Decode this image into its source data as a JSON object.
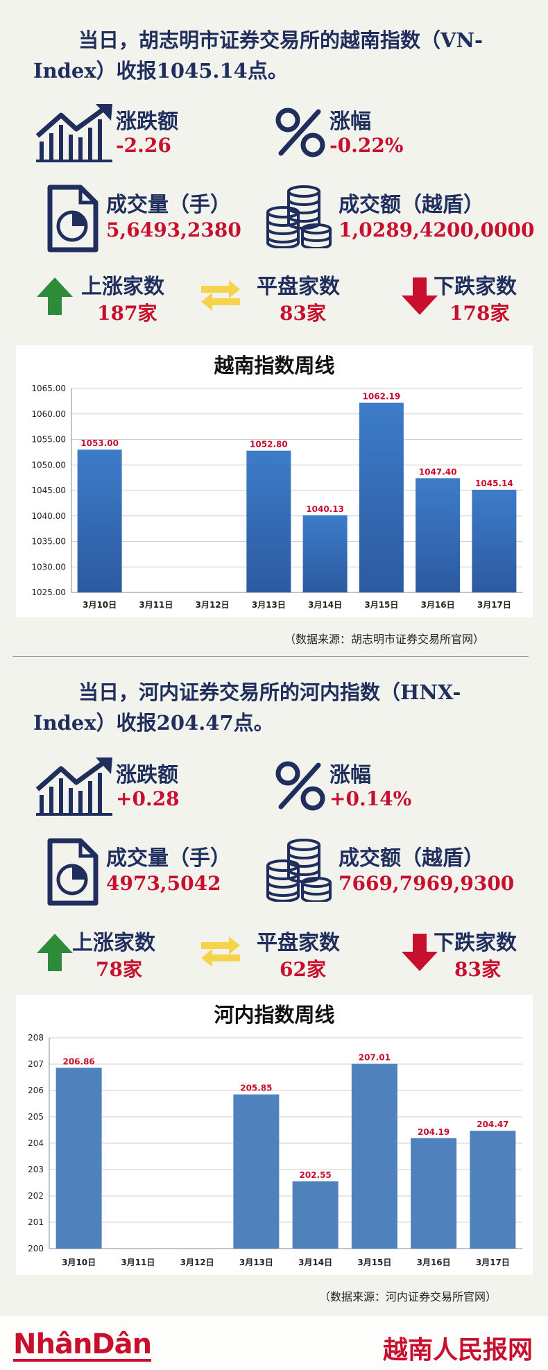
{
  "section1": {
    "headline": "当日，胡志明市证券交易所的越南指数（VN-Index）收报1045.14点。",
    "change": {
      "label": "涨跌额",
      "value": "-2.26"
    },
    "pct": {
      "label": "涨幅",
      "value": "-0.22%"
    },
    "volume": {
      "label": "成交量（手）",
      "value": "5,6493,2380"
    },
    "turnover": {
      "label": "成交额（越盾）",
      "value": "1,0289,4200,0000"
    },
    "up": {
      "label": "上涨家数",
      "value": "187家"
    },
    "flat": {
      "label": "平盘家数",
      "value": "83家"
    },
    "down": {
      "label": "下跌家数",
      "value": "178家"
    },
    "chart_title": "越南指数周线",
    "source": "（数据来源：胡志明市证券交易所官网）"
  },
  "section2": {
    "headline": "当日，河内证券交易所的河内指数（HNX-Index）收报204.47点。",
    "change": {
      "label": "涨跌额",
      "value": "+0.28"
    },
    "pct": {
      "label": "涨幅",
      "value": "+0.14%"
    },
    "volume": {
      "label": "成交量（手）",
      "value": "4973,5042"
    },
    "turnover": {
      "label": "成交额（越盾）",
      "value": "7669,7969,9300"
    },
    "up": {
      "label": "上涨家数",
      "value": "78家"
    },
    "flat": {
      "label": "平盘家数",
      "value": "62家"
    },
    "down": {
      "label": "下跌家数",
      "value": "83家"
    },
    "chart_title": "河内指数周线",
    "source": "（数据来源：河内证券交易所官网）"
  },
  "footer": {
    "logo_left": "NhânDân",
    "logo_right": "越南人民报网"
  },
  "colors": {
    "navy": "#1f2e5c",
    "red": "#c8102e",
    "green": "#2e8b3a",
    "yellow": "#f5d34a",
    "bar_dark": "#2c5aa0",
    "bar_light": "#4f81bd"
  },
  "chart_data": [
    {
      "type": "bar",
      "title": "越南指数周线",
      "categories": [
        "3月10日",
        "3月11日",
        "3月12日",
        "3月13日",
        "3月14日",
        "3月15日",
        "3月16日",
        "3月17日"
      ],
      "values": [
        1053.0,
        null,
        null,
        1052.8,
        1040.13,
        1062.19,
        1047.4,
        1045.14
      ],
      "data_labels": [
        "1053.00",
        "",
        "",
        "1052.80",
        "1040.13",
        "1062.19",
        "1047.40",
        "1045.14"
      ],
      "ylim": [
        1025,
        1065
      ],
      "yticks": [
        "1025.00",
        "1030.00",
        "1035.00",
        "1040.00",
        "1045.00",
        "1050.00",
        "1055.00",
        "1060.00",
        "1065.00"
      ],
      "xlabel": "",
      "ylabel": "",
      "grid": true,
      "legend": "none"
    },
    {
      "type": "bar",
      "title": "河内指数周线",
      "categories": [
        "3月10日",
        "3月11日",
        "3月12日",
        "3月13日",
        "3月14日",
        "3月15日",
        "3月16日",
        "3月17日"
      ],
      "values": [
        206.86,
        null,
        null,
        205.85,
        202.55,
        207.01,
        204.19,
        204.47
      ],
      "data_labels": [
        "206.86",
        "",
        "",
        "205.85",
        "202.55",
        "207.01",
        "204.19",
        "204.47"
      ],
      "ylim": [
        200,
        208
      ],
      "yticks": [
        "200",
        "201",
        "202",
        "203",
        "204",
        "205",
        "206",
        "207",
        "208"
      ],
      "xlabel": "",
      "ylabel": "",
      "grid": true,
      "legend": "none"
    }
  ]
}
